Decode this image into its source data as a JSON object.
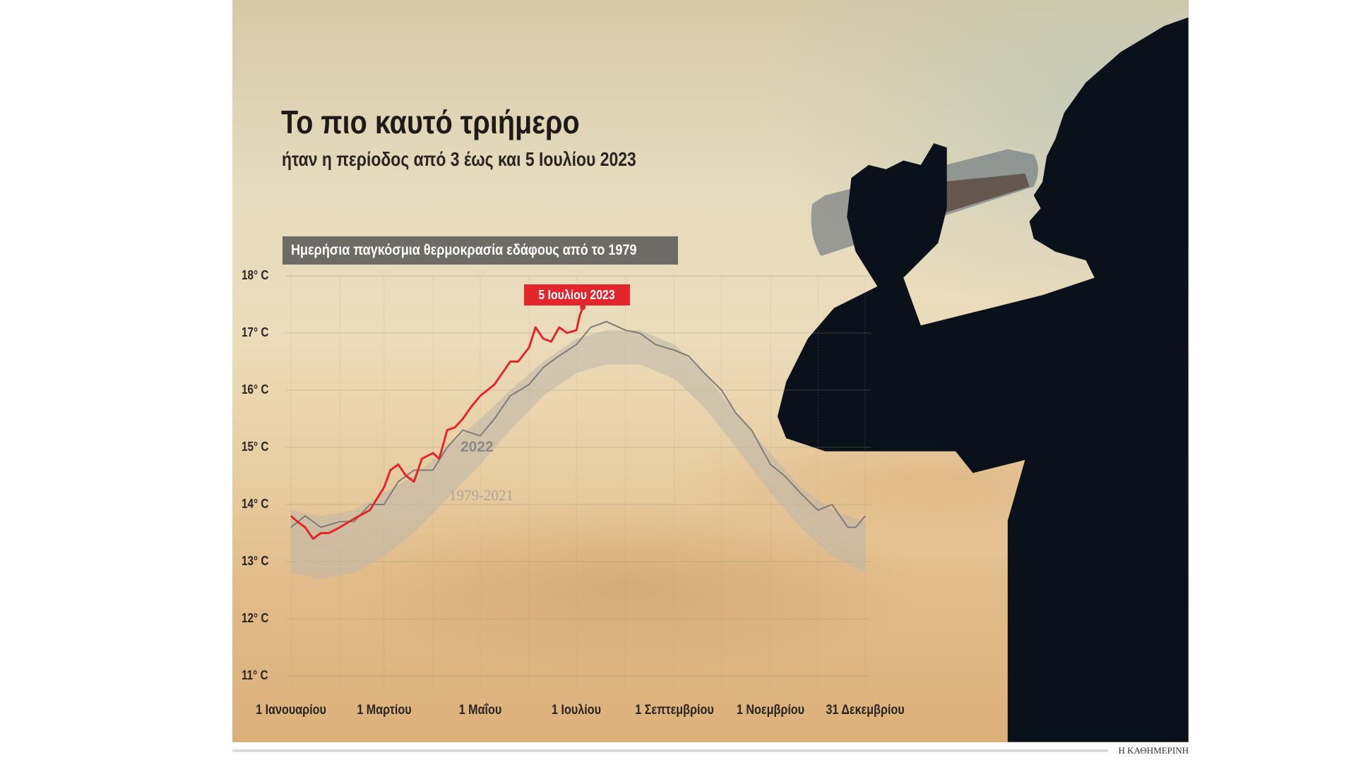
{
  "title": "Το πιο καυτό τριήμερο",
  "subtitle": "ήταν η περίοδος από 3 έως και 5 Ιουλίου 2023",
  "source": "Η ΚΑΘΗΜΕΡΙΝΗ",
  "chart_data": {
    "type": "line",
    "title": "Ημερήσια παγκόσμια θερμοκρασία εδάφους από το 1979",
    "ylim": [
      11,
      18
    ],
    "yticks": [
      "18° C",
      "17° C",
      "16° C",
      "15° C",
      "14° C",
      "13° C",
      "12° C",
      "11° C"
    ],
    "ytick_values": [
      18,
      17,
      16,
      15,
      14,
      13,
      12,
      11
    ],
    "xlim": [
      "01-01",
      "12-31"
    ],
    "xticks": [
      {
        "x": "01-01",
        "label": "1 Ιανουαρίου"
      },
      {
        "x": "03-01",
        "label": "1 Μαρτίου"
      },
      {
        "x": "05-01",
        "label": "1 Μαΐου"
      },
      {
        "x": "07-01",
        "label": "1 Ιουλίου"
      },
      {
        "x": "09-01",
        "label": "1 Σεπτεμβρίου"
      },
      {
        "x": "11-01",
        "label": "1 Νοεμβρίου"
      },
      {
        "x": "12-31",
        "label": "31 Δεκεμβρίου"
      }
    ],
    "grid": true,
    "annotation": {
      "x": "07-05",
      "y": 17.45,
      "label": "5 Ιουλίου 2023"
    },
    "series": [
      {
        "name": "1979-2021",
        "kind": "band",
        "color": "#bdb6a8",
        "x": [
          "01-01",
          "01-20",
          "02-10",
          "03-01",
          "03-20",
          "04-10",
          "05-01",
          "05-20",
          "06-10",
          "07-01",
          "07-20",
          "08-10",
          "09-01",
          "09-20",
          "10-10",
          "11-01",
          "11-20",
          "12-10",
          "12-31"
        ],
        "low": [
          12.8,
          12.7,
          12.8,
          13.1,
          13.5,
          14.1,
          14.7,
          15.3,
          15.9,
          16.3,
          16.45,
          16.45,
          16.2,
          15.7,
          15.0,
          14.2,
          13.6,
          13.1,
          12.8
        ],
        "high": [
          13.9,
          13.8,
          13.9,
          14.2,
          14.5,
          15.0,
          15.5,
          16.0,
          16.5,
          16.9,
          17.05,
          17.05,
          16.8,
          16.3,
          15.6,
          14.9,
          14.3,
          13.9,
          13.7
        ]
      },
      {
        "name": "2022",
        "color": "#7f7c78",
        "x": [
          "01-01",
          "01-10",
          "01-20",
          "02-01",
          "02-10",
          "02-20",
          "03-01",
          "03-10",
          "03-20",
          "04-01",
          "04-10",
          "04-20",
          "05-01",
          "05-10",
          "05-20",
          "06-01",
          "06-10",
          "06-20",
          "07-01",
          "07-10",
          "07-20",
          "08-01",
          "08-10",
          "08-20",
          "09-01",
          "09-10",
          "09-20",
          "10-01",
          "10-10",
          "10-20",
          "11-01",
          "11-10",
          "11-20",
          "12-01",
          "12-10",
          "12-20",
          "12-25",
          "12-31"
        ],
        "y": [
          13.6,
          13.8,
          13.6,
          13.7,
          13.7,
          14.0,
          14.0,
          14.4,
          14.6,
          14.6,
          15.0,
          15.3,
          15.2,
          15.5,
          15.9,
          16.1,
          16.4,
          16.6,
          16.8,
          17.1,
          17.2,
          17.05,
          17.0,
          16.8,
          16.7,
          16.6,
          16.3,
          16.0,
          15.6,
          15.3,
          14.7,
          14.5,
          14.2,
          13.9,
          14.0,
          13.6,
          13.6,
          13.8
        ]
      },
      {
        "name": "2023",
        "color": "#e3262c",
        "x": [
          "01-01",
          "01-05",
          "01-10",
          "01-15",
          "01-20",
          "01-25",
          "02-01",
          "02-10",
          "02-20",
          "03-01",
          "03-05",
          "03-10",
          "03-15",
          "03-20",
          "03-25",
          "04-01",
          "04-05",
          "04-10",
          "04-15",
          "04-20",
          "04-25",
          "05-01",
          "05-10",
          "05-15",
          "05-20",
          "05-25",
          "06-01",
          "06-05",
          "06-10",
          "06-15",
          "06-20",
          "06-25",
          "07-01",
          "07-03",
          "07-05"
        ],
        "y": [
          13.8,
          13.7,
          13.6,
          13.4,
          13.5,
          13.5,
          13.6,
          13.75,
          13.9,
          14.3,
          14.6,
          14.7,
          14.5,
          14.4,
          14.8,
          14.9,
          14.8,
          15.3,
          15.35,
          15.5,
          15.7,
          15.9,
          16.1,
          16.3,
          16.5,
          16.5,
          16.75,
          17.1,
          16.9,
          16.85,
          17.1,
          17.0,
          17.05,
          17.3,
          17.45
        ]
      }
    ]
  }
}
